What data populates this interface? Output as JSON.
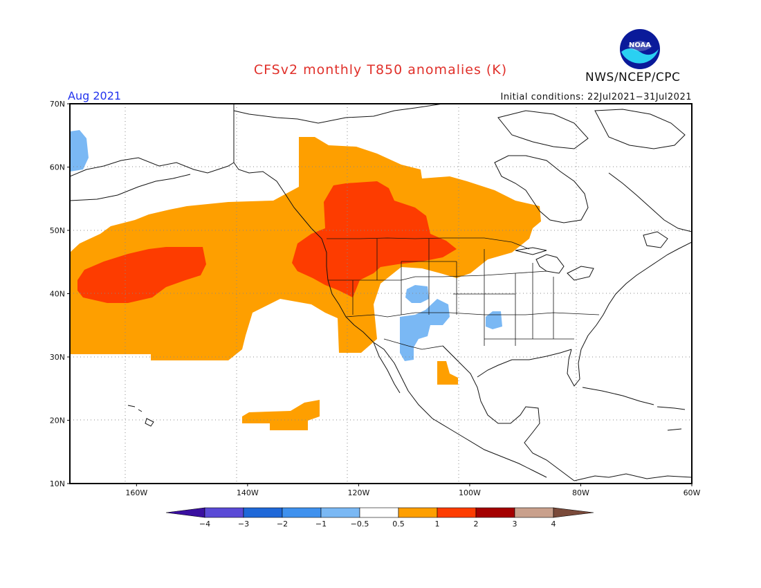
{
  "header": {
    "title": "CFSv2 monthly T850 anomalies (K)",
    "organization": "NWS/NCEP/CPC",
    "logo_text": "NOAA",
    "month": "Aug 2021",
    "initial_conditions": "Initial conditions: 22Jul2021−31Jul2021"
  },
  "map": {
    "projection": "lat-lon",
    "lon_range": [
      -172,
      -60
    ],
    "lat_range": [
      10,
      70
    ],
    "gridlines": "dotted",
    "lat_ticks": [
      {
        "value": 70,
        "label": "70N"
      },
      {
        "value": 60,
        "label": "60N"
      },
      {
        "value": 50,
        "label": "50N"
      },
      {
        "value": 40,
        "label": "40N"
      },
      {
        "value": 30,
        "label": "30N"
      },
      {
        "value": 20,
        "label": "20N"
      },
      {
        "value": 10,
        "label": "10N"
      }
    ],
    "lon_ticks": [
      {
        "value": -160,
        "label": "160W"
      },
      {
        "value": -140,
        "label": "140W"
      },
      {
        "value": -120,
        "label": "120W"
      },
      {
        "value": -100,
        "label": "100W"
      },
      {
        "value": -80,
        "label": "80W"
      },
      {
        "value": -60,
        "label": "60W"
      }
    ]
  },
  "colorbar": {
    "boundaries": [
      "−4",
      "−3",
      "−2",
      "−1",
      "−0.5",
      "0.5",
      "1",
      "2",
      "3",
      "4"
    ],
    "colors": [
      "#3a10a0",
      "#5a4ad6",
      "#1f68d8",
      "#3f91ee",
      "#7ab8f4",
      "#ffffff",
      "#fe9f00",
      "#fd3c00",
      "#a40000",
      "#c9a08c",
      "#7a4a3a"
    ],
    "extend": "both"
  },
  "anomaly_colors": {
    "warm_05_1": "#fe9f00",
    "warm_1_2": "#fd3c00",
    "cool_m05_m1": "#7ab8f4"
  }
}
